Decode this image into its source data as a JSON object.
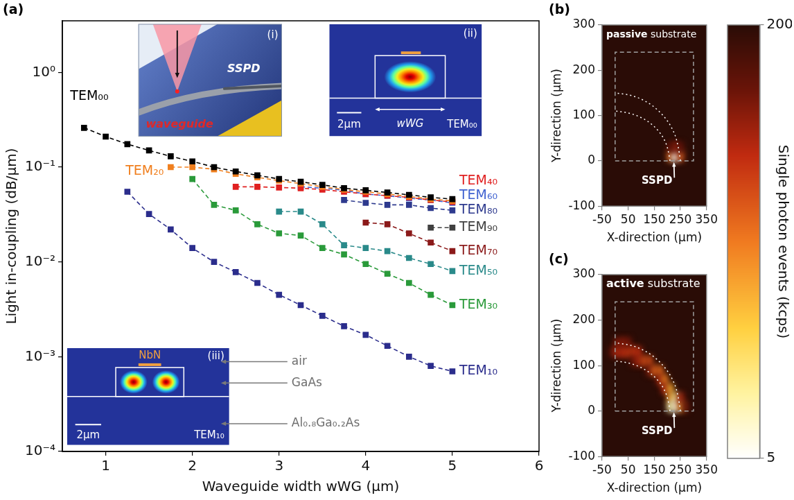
{
  "chart_data": [
    {
      "panel": "(a)",
      "type": "line",
      "x_label": "Waveguide width wWG (µm)",
      "y_label": "Light in-coupling (dB/µm)",
      "log": "y",
      "grid": false,
      "marker": "square",
      "line_style": "dashed",
      "xlim": [
        0.5,
        6
      ],
      "xticks": [
        1,
        2,
        3,
        4,
        5,
        6
      ],
      "ylim": [
        0.0001,
        3.5
      ],
      "yticks": [
        {
          "value": 0.0001,
          "label": "10⁻⁴"
        },
        {
          "value": 0.001,
          "label": "10⁻³"
        },
        {
          "value": 0.01,
          "label": "10⁻²"
        },
        {
          "value": 0.1,
          "label": "10⁻¹"
        },
        {
          "value": 1,
          "label": "10⁰"
        }
      ],
      "series": [
        {
          "name": "TEM₀₀",
          "color": "#000000",
          "x": [
            0.75,
            1,
            1.25,
            1.5,
            1.75,
            2,
            2.25,
            2.5,
            2.75,
            3,
            3.25,
            3.5,
            3.75,
            4,
            4.25,
            4.5,
            4.75,
            5
          ],
          "values": [
            0.26,
            0.21,
            0.175,
            0.15,
            0.13,
            0.115,
            0.1,
            0.09,
            0.082,
            0.075,
            0.07,
            0.065,
            0.06,
            0.057,
            0.054,
            0.051,
            0.048,
            0.046
          ]
        },
        {
          "name": "TEM₂₀",
          "color": "#f07f1e",
          "x": [
            1.75,
            2,
            2.25,
            2.5,
            2.75,
            3,
            3.25,
            3.5,
            3.75,
            4,
            4.25,
            4.5,
            4.75,
            5
          ],
          "values": [
            0.1,
            0.1,
            0.095,
            0.085,
            0.078,
            0.072,
            0.067,
            0.062,
            0.058,
            0.055,
            0.052,
            0.049,
            0.046,
            0.044
          ]
        },
        {
          "name": "TEM₄₀",
          "color": "#e02020",
          "x": [
            2.5,
            2.75,
            3,
            3.25,
            3.5,
            3.75,
            4,
            4.25,
            4.5,
            4.75,
            5
          ],
          "values": [
            0.062,
            0.062,
            0.061,
            0.06,
            0.058,
            0.055,
            0.052,
            0.05,
            0.048,
            0.045,
            0.043
          ]
        },
        {
          "name": "TEM₆₀",
          "color": "#4062d0",
          "x": [
            3.25,
            3.5,
            3.75,
            4,
            4.25,
            4.5,
            4.75,
            5
          ],
          "values": [
            0.062,
            0.06,
            0.057,
            0.052,
            0.05,
            0.047,
            0.045,
            0.042
          ]
        },
        {
          "name": "TEM₈₀",
          "color": "#2e3a8e",
          "x": [
            3.75,
            4,
            4.25,
            4.5,
            4.75,
            5
          ],
          "values": [
            0.045,
            0.042,
            0.04,
            0.04,
            0.037,
            0.035
          ]
        },
        {
          "name": "TEM₉₀",
          "color": "#404040",
          "x": [
            4.75,
            5
          ],
          "values": [
            0.023,
            0.023
          ]
        },
        {
          "name": "TEM₇₀",
          "color": "#8b1a1a",
          "x": [
            4,
            4.25,
            4.5,
            4.75,
            5
          ],
          "values": [
            0.026,
            0.025,
            0.02,
            0.016,
            0.013
          ]
        },
        {
          "name": "TEM₅₀",
          "color": "#2a8a8a",
          "x": [
            3,
            3.25,
            3.5,
            3.75,
            4,
            4.25,
            4.5,
            4.75,
            5
          ],
          "values": [
            0.034,
            0.034,
            0.025,
            0.015,
            0.014,
            0.013,
            0.011,
            0.0095,
            0.008
          ]
        },
        {
          "name": "TEM₃₀",
          "color": "#2a9a3a",
          "x": [
            2,
            2.25,
            2.5,
            2.75,
            3,
            3.25,
            3.5,
            3.75,
            4,
            4.25,
            4.5,
            4.75,
            5
          ],
          "values": [
            0.075,
            0.04,
            0.035,
            0.025,
            0.02,
            0.019,
            0.014,
            0.012,
            0.0095,
            0.0075,
            0.006,
            0.0045,
            0.0035
          ]
        },
        {
          "name": "TEM₁₀",
          "color": "#2b2d8c",
          "x": [
            1.25,
            1.5,
            1.75,
            2,
            2.25,
            2.5,
            2.75,
            3,
            3.25,
            3.5,
            3.75,
            4,
            4.25,
            4.5,
            4.75,
            5
          ],
          "values": [
            0.055,
            0.032,
            0.022,
            0.014,
            0.01,
            0.0078,
            0.006,
            0.0045,
            0.0035,
            0.0027,
            0.0021,
            0.0017,
            0.0013,
            0.001,
            0.0008,
            0.0007
          ]
        }
      ],
      "insets": [
        {
          "tag": "(i)",
          "labels": [
            "waveguide",
            "SSPD"
          ]
        },
        {
          "tag": "(ii)",
          "labels": [
            "wWG",
            "2µm",
            "TEM₀₀"
          ]
        },
        {
          "tag": "(iii)",
          "labels": [
            "NbN",
            "2µm",
            "TEM₁₀"
          ],
          "callouts": [
            "air",
            "GaAs",
            "Al₀.₈Ga₀.₂As"
          ]
        }
      ]
    },
    {
      "panel": "(b)",
      "type": "heatmap",
      "label": "passive substrate",
      "x_label": "X-direction (µm)",
      "y_label": "Y-direction (µm)",
      "xlim": [
        -50,
        350
      ],
      "xticks": [
        -50,
        50,
        150,
        250,
        350
      ],
      "ylim": [
        -100,
        300
      ],
      "yticks": [
        -100,
        0,
        100,
        200,
        300
      ],
      "cell_size": 20,
      "background": 200,
      "cells": [
        [
          210,
          10,
          110
        ],
        [
          230,
          10,
          5
        ],
        [
          250,
          10,
          120
        ],
        [
          230,
          30,
          150
        ],
        [
          210,
          30,
          175
        ],
        [
          250,
          30,
          175
        ]
      ],
      "outlines": [
        {
          "color": "#a0a0a0",
          "line_style": "dashed",
          "points": [
            [
              0,
              0
            ],
            [
              300,
              0
            ],
            [
              300,
              240
            ],
            [
              0,
              240
            ],
            [
              0,
              0
            ]
          ]
        },
        {
          "color": "#ffffff",
          "line_style": "dotted",
          "points": [
            [
              250,
              0
            ],
            [
              241,
              39
            ],
            [
              217,
              75
            ],
            [
              177,
              106
            ],
            [
              125,
              130
            ],
            [
              65,
              145
            ],
            [
              0,
              150
            ]
          ]
        },
        {
          "color": "#ffffff",
          "line_style": "dotted",
          "points": [
            [
              210,
              0
            ],
            [
              203,
              28
            ],
            [
              182,
              55
            ],
            [
              148,
              78
            ],
            [
              105,
              95
            ],
            [
              54,
              106
            ],
            [
              0,
              110
            ]
          ]
        }
      ],
      "annotations": [
        {
          "text": "SSPD",
          "x": 160,
          "y": -45,
          "arrow_to": [
            225,
            -3
          ]
        }
      ]
    },
    {
      "panel": "(c)",
      "type": "heatmap",
      "label": "active substrate",
      "x_label": "X-direction (µm)",
      "y_label": "Y-direction (µm)",
      "xlim": [
        -50,
        350
      ],
      "xticks": [
        -50,
        50,
        150,
        250,
        350
      ],
      "ylim": [
        -100,
        300
      ],
      "yticks": [
        -100,
        0,
        100,
        200,
        300
      ],
      "cell_size": 20,
      "background": 200,
      "cells": [
        [
          -10,
          130,
          170
        ],
        [
          10,
          130,
          140
        ],
        [
          10,
          150,
          160
        ],
        [
          30,
          130,
          140
        ],
        [
          30,
          150,
          160
        ],
        [
          50,
          130,
          135
        ],
        [
          50,
          150,
          165
        ],
        [
          70,
          130,
          135
        ],
        [
          70,
          110,
          170
        ],
        [
          90,
          130,
          140
        ],
        [
          90,
          110,
          150
        ],
        [
          110,
          110,
          125
        ],
        [
          130,
          110,
          125
        ],
        [
          130,
          90,
          165
        ],
        [
          150,
          90,
          115
        ],
        [
          170,
          90,
          110
        ],
        [
          170,
          70,
          150
        ],
        [
          190,
          70,
          100
        ],
        [
          190,
          50,
          140
        ],
        [
          210,
          50,
          80
        ],
        [
          210,
          30,
          90
        ],
        [
          230,
          30,
          40
        ],
        [
          230,
          10,
          5
        ],
        [
          210,
          10,
          30
        ],
        [
          250,
          10,
          90
        ],
        [
          250,
          30,
          150
        ],
        [
          270,
          10,
          170
        ]
      ],
      "outlines": [
        {
          "color": "#a0a0a0",
          "line_style": "dashed",
          "points": [
            [
              0,
              0
            ],
            [
              300,
              0
            ],
            [
              300,
              240
            ],
            [
              0,
              240
            ],
            [
              0,
              0
            ]
          ]
        },
        {
          "color": "#ffffff",
          "line_style": "dotted",
          "points": [
            [
              250,
              0
            ],
            [
              241,
              39
            ],
            [
              217,
              75
            ],
            [
              177,
              106
            ],
            [
              125,
              130
            ],
            [
              65,
              145
            ],
            [
              0,
              150
            ]
          ]
        },
        {
          "color": "#ffffff",
          "line_style": "dotted",
          "points": [
            [
              210,
              0
            ],
            [
              203,
              28
            ],
            [
              182,
              55
            ],
            [
              148,
              78
            ],
            [
              105,
              95
            ],
            [
              54,
              106
            ],
            [
              0,
              110
            ]
          ]
        }
      ],
      "annotations": [
        {
          "text": "SSPD",
          "x": 160,
          "y": -45,
          "arrow_to": [
            225,
            -3
          ]
        }
      ]
    },
    {
      "type": "colorbar",
      "label": "Single photon events (kcps)",
      "range": [
        5,
        200
      ],
      "ticks": [
        5,
        200
      ]
    }
  ]
}
